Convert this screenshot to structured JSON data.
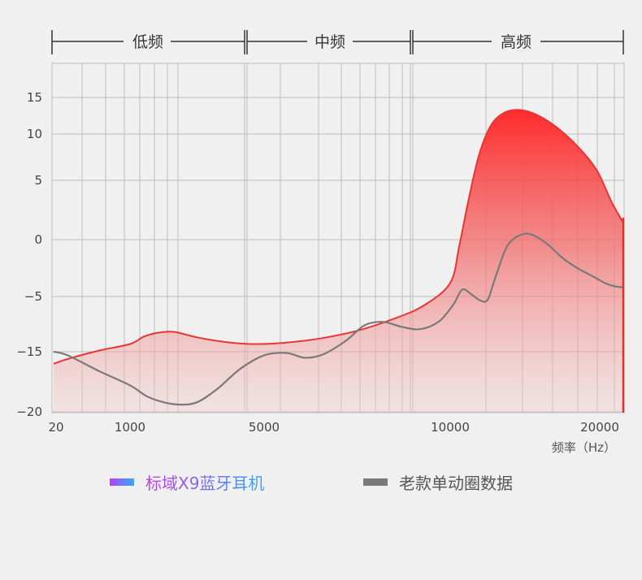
{
  "bands": [
    {
      "label": "低频"
    },
    {
      "label": "中频"
    },
    {
      "label": "高频"
    }
  ],
  "chart_data": {
    "type": "area",
    "title": "",
    "xlabel": "频率（Hz）",
    "ylabel": "",
    "x_ticks": [
      "20",
      "1000",
      "5000",
      "10000",
      "20000"
    ],
    "y_ticks": [
      15,
      10,
      5,
      0,
      -5,
      -15,
      -20
    ],
    "grid": true,
    "legend": "bottom",
    "series": [
      {
        "name": "标域X9蓝牙耳机",
        "color": "#e83535",
        "style": "area",
        "points": [
          [
            20,
            -16
          ],
          [
            200,
            -15.6
          ],
          [
            600,
            -14.8
          ],
          [
            1000,
            -13.6
          ],
          [
            1400,
            -12.3
          ],
          [
            1800,
            -11.6
          ],
          [
            2300,
            -11.4
          ],
          [
            3000,
            -12.4
          ],
          [
            3800,
            -13.2
          ],
          [
            4600,
            -13.6
          ],
          [
            5500,
            -13.4
          ],
          [
            6500,
            -12.6
          ],
          [
            7500,
            -11.2
          ],
          [
            8500,
            -9
          ],
          [
            9300,
            -6.6
          ],
          [
            10000,
            -3.8
          ],
          [
            10600,
            -0.6
          ],
          [
            11200,
            3.2
          ],
          [
            11900,
            7.6
          ],
          [
            12700,
            11.1
          ],
          [
            13600,
            12.9
          ],
          [
            14600,
            13.3
          ],
          [
            15700,
            12.7
          ],
          [
            17000,
            11.1
          ],
          [
            18500,
            8.7
          ],
          [
            19800,
            6.1
          ],
          [
            21200,
            3.2
          ],
          [
            22500,
            1.3
          ]
        ]
      },
      {
        "name": "老款单动圈数据",
        "color": "#7a7a7a",
        "style": "line",
        "points": [
          [
            20,
            -15
          ],
          [
            200,
            -15.3
          ],
          [
            600,
            -16.6
          ],
          [
            1000,
            -17.8
          ],
          [
            1500,
            -18.7
          ],
          [
            2000,
            -19.2
          ],
          [
            2500,
            -19.4
          ],
          [
            3000,
            -19.2
          ],
          [
            3600,
            -18.1
          ],
          [
            4300,
            -16.4
          ],
          [
            5000,
            -15.3
          ],
          [
            5600,
            -15.1
          ],
          [
            6100,
            -15.5
          ],
          [
            6600,
            -15.2
          ],
          [
            7200,
            -13
          ],
          [
            7700,
            -10.2
          ],
          [
            8200,
            -9.6
          ],
          [
            8700,
            -10.5
          ],
          [
            9200,
            -10.9
          ],
          [
            9700,
            -9.5
          ],
          [
            10200,
            -6.5
          ],
          [
            10800,
            -4.4
          ],
          [
            11400,
            -4.8
          ],
          [
            12000,
            -5.7
          ],
          [
            12500,
            -5.6
          ],
          [
            13000,
            -3.4
          ],
          [
            13800,
            -0.6
          ],
          [
            14700,
            0.4
          ],
          [
            15500,
            0.4
          ],
          [
            16500,
            -0.4
          ],
          [
            17500,
            -1.6
          ],
          [
            18500,
            -2.5
          ],
          [
            19500,
            -3.2
          ],
          [
            20500,
            -3.8
          ],
          [
            21500,
            -4.1
          ],
          [
            22500,
            -4.2
          ]
        ]
      }
    ]
  }
}
